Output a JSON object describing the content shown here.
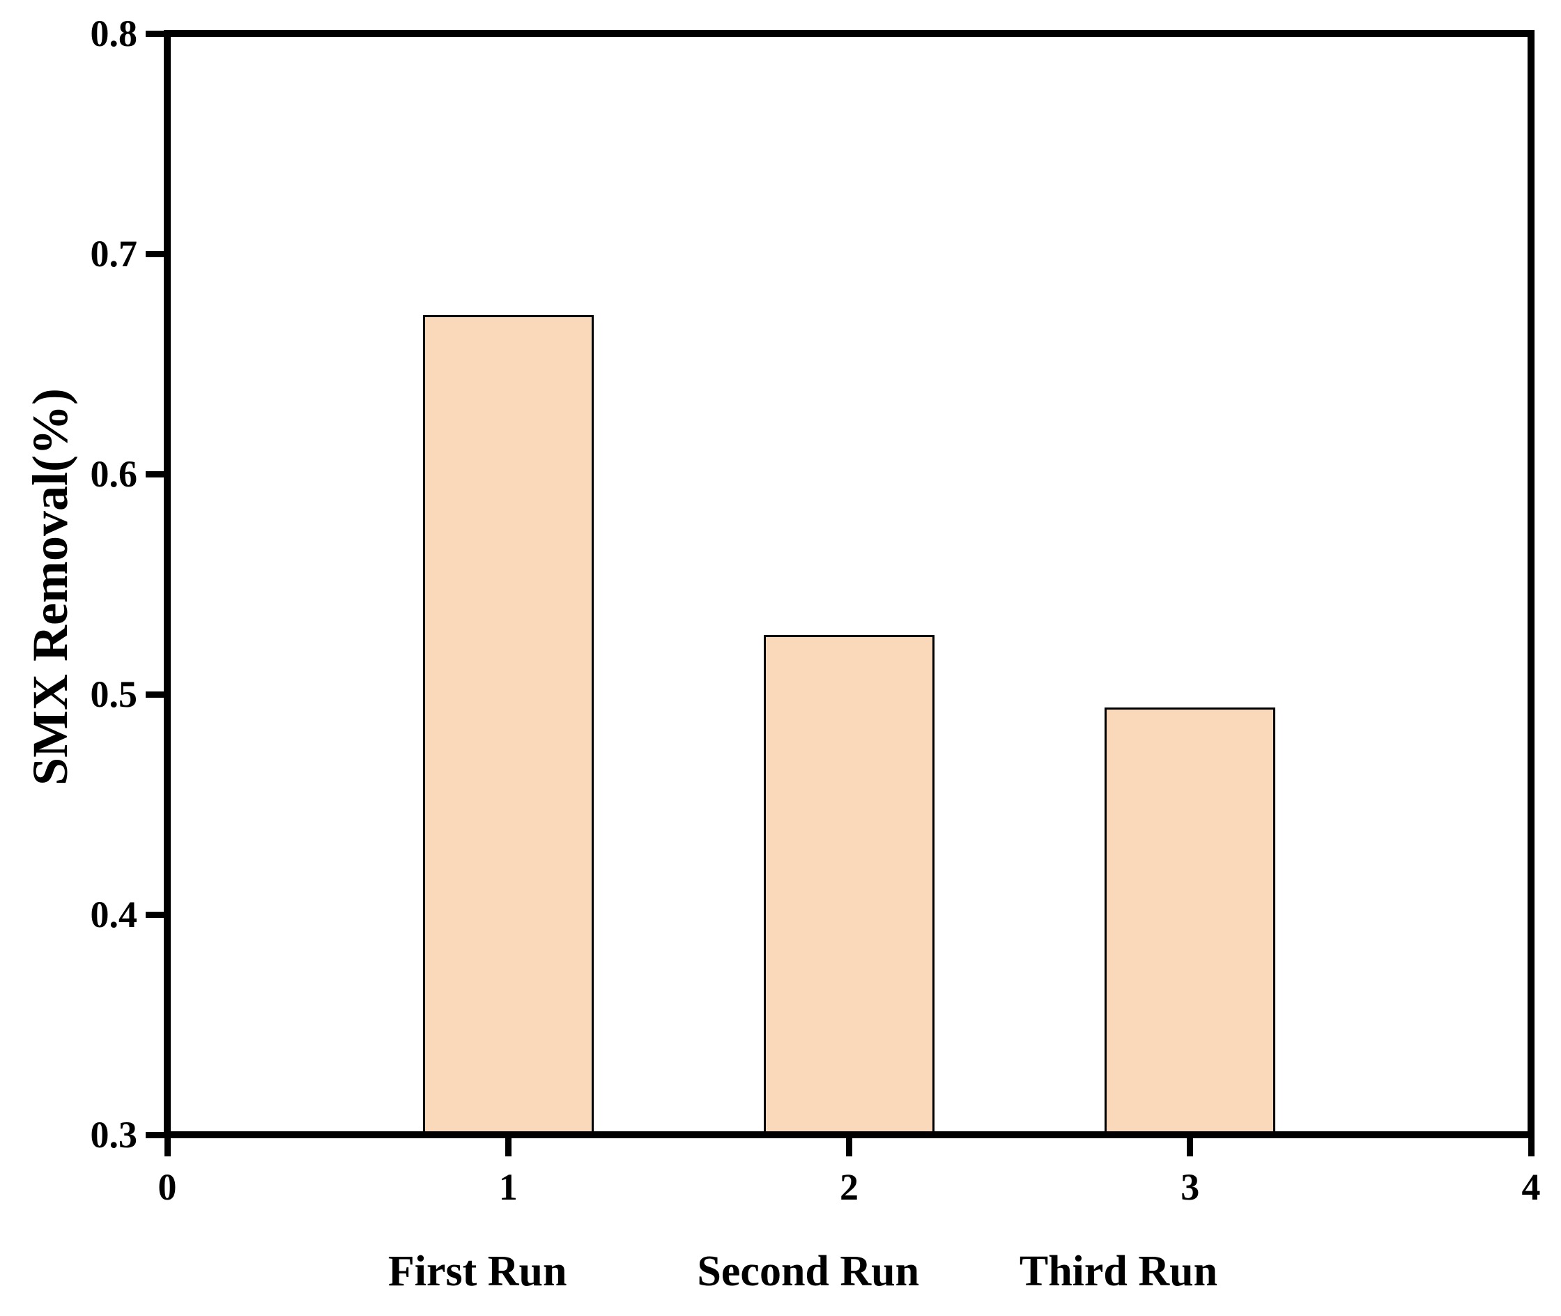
{
  "figure": {
    "background_color": "#ffffff",
    "axis_color": "#000000"
  },
  "chart_data": {
    "type": "bar",
    "title": "",
    "xlabel": "",
    "ylabel": "SMX Removal(%)",
    "categories": [
      "First Run",
      "Second Run",
      "Third Run"
    ],
    "x": [
      1,
      2,
      3
    ],
    "values": [
      0.672,
      0.527,
      0.494
    ],
    "bar_width": 0.5,
    "bar_color": "#FAD9BA",
    "bar_edge_color": "#000000",
    "xlim": [
      0,
      4
    ],
    "ylim": [
      0.3,
      0.8
    ],
    "x_ticks": [
      0,
      1,
      2,
      3,
      4
    ],
    "x_tick_labels": [
      "0",
      "1",
      "2",
      "3",
      "4"
    ],
    "y_ticks": [
      0.3,
      0.4,
      0.5,
      0.6,
      0.7,
      0.8
    ],
    "y_tick_labels": [
      "0.3",
      "0.4",
      "0.5",
      "0.6",
      "0.7",
      "0.8"
    ],
    "category_x": [
      0.91,
      1.88,
      2.79
    ],
    "grid": false,
    "legend": null
  }
}
